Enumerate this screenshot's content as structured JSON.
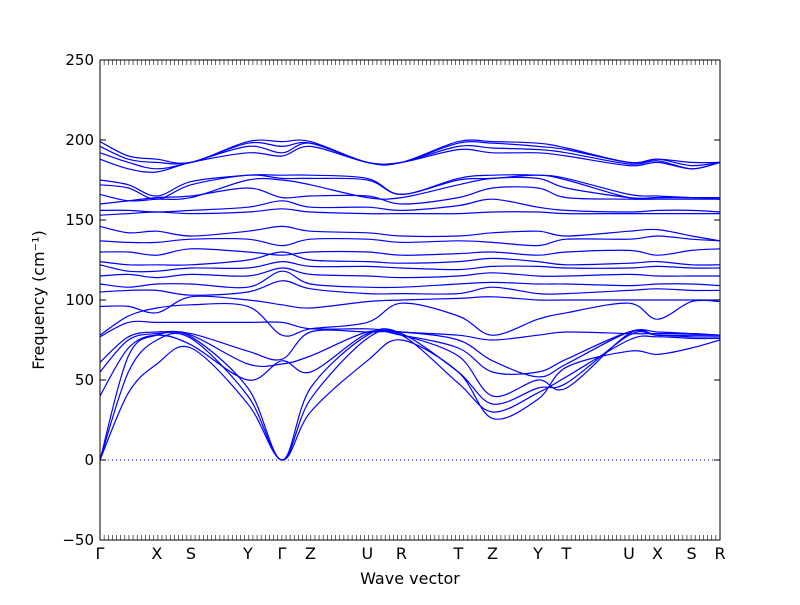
{
  "chart_data": {
    "type": "line",
    "xlabel": "Wave vector",
    "ylabel": "Frequency (cm⁻¹)",
    "ylim": [
      -50,
      250
    ],
    "yticks": [
      -50,
      0,
      50,
      100,
      150,
      200,
      250
    ],
    "grid": false,
    "zero_line": 0,
    "line_color": "#0000ff",
    "high_symmetry_points": [
      {
        "label": "Γ",
        "x": 0.0
      },
      {
        "label": "X",
        "x": 0.5
      },
      {
        "label": "S",
        "x": 0.8
      },
      {
        "label": "Y",
        "x": 1.3
      },
      {
        "label": "Γ",
        "x": 1.6
      },
      {
        "label": "Z",
        "x": 1.85
      },
      {
        "label": "U",
        "x": 2.35
      },
      {
        "label": "R",
        "x": 2.65
      },
      {
        "label": "T",
        "x": 3.15
      },
      {
        "label": "Z",
        "x": 3.45
      },
      {
        "label": "Y",
        "x": 3.85
      },
      {
        "label": "T",
        "x": 4.1
      },
      {
        "label": "U",
        "x": 4.65
      },
      {
        "label": "X",
        "x": 4.9
      },
      {
        "label": "S",
        "x": 5.2
      },
      {
        "label": "R",
        "x": 5.45
      }
    ],
    "series": [
      {
        "x": [
          0.0,
          0.25,
          0.5,
          0.8,
          1.3,
          1.6,
          1.85,
          2.35,
          2.65,
          3.15,
          3.45,
          3.85,
          4.1,
          4.65,
          4.9,
          5.2,
          5.45
        ],
        "values": [
          0,
          42,
          60,
          70,
          35,
          0,
          30,
          62,
          75,
          55,
          26,
          38,
          58,
          68,
          66,
          70,
          75
        ]
      },
      {
        "x": [
          0.0,
          0.25,
          0.5,
          0.8,
          1.3,
          1.6,
          1.85,
          2.35,
          2.65,
          3.15,
          3.45,
          3.85,
          4.1,
          4.65,
          4.9,
          5.2,
          5.45
        ],
        "values": [
          0,
          55,
          75,
          76,
          40,
          0,
          38,
          76,
          78,
          48,
          30,
          42,
          52,
          75,
          77,
          76,
          76
        ]
      },
      {
        "x": [
          0.0,
          0.25,
          0.5,
          0.8,
          1.3,
          1.6,
          1.85,
          2.35,
          2.65,
          3.15,
          3.45,
          3.85,
          4.1,
          4.65,
          4.9,
          5.2,
          5.45
        ],
        "values": [
          0,
          65,
          78,
          77,
          45,
          0,
          45,
          78,
          79,
          55,
          35,
          45,
          48,
          78,
          78,
          77,
          77
        ]
      },
      {
        "x": [
          0.0,
          0.25,
          0.5,
          0.8,
          1.3,
          1.6,
          1.85,
          2.35,
          2.65,
          3.15,
          3.45,
          3.85,
          4.1,
          4.65,
          4.9,
          5.2,
          5.45
        ],
        "values": [
          40,
          70,
          78,
          72,
          50,
          62,
          55,
          79,
          78,
          65,
          40,
          50,
          45,
          79,
          78,
          78,
          78
        ]
      },
      {
        "x": [
          0.0,
          0.25,
          0.5,
          0.8,
          1.3,
          1.6,
          1.85,
          2.35,
          2.65,
          3.15,
          3.45,
          3.85,
          4.1,
          4.65,
          4.9,
          5.2,
          5.45
        ],
        "values": [
          55,
          75,
          79,
          78,
          60,
          60,
          65,
          80,
          78,
          70,
          55,
          55,
          63,
          80,
          78,
          78,
          78
        ]
      },
      {
        "x": [
          0.0,
          0.25,
          0.5,
          0.8,
          1.3,
          1.6,
          1.85,
          2.35,
          2.65,
          3.15,
          3.45,
          3.85,
          4.1,
          4.65,
          4.9,
          5.2,
          5.45
        ],
        "values": [
          61,
          77,
          80,
          79,
          68,
          63,
          80,
          80,
          80,
          75,
          62,
          52,
          60,
          80,
          80,
          79,
          78
        ]
      },
      {
        "x": [
          0.0,
          0.25,
          0.5,
          0.8,
          1.3,
          1.6,
          1.85,
          2.35,
          2.65,
          3.15,
          3.45,
          3.85,
          4.1,
          4.65,
          4.9,
          5.2,
          5.45
        ],
        "values": [
          77,
          86,
          86,
          86,
          86,
          86,
          82,
          82,
          80,
          78,
          75,
          78,
          80,
          79,
          79,
          79,
          78
        ]
      },
      {
        "x": [
          0.0,
          0.25,
          0.5,
          0.8,
          1.3,
          1.6,
          1.85,
          2.35,
          2.65,
          3.15,
          3.45,
          3.85,
          4.1,
          4.65,
          4.9,
          5.2,
          5.45
        ],
        "values": [
          78,
          90,
          95,
          97,
          96,
          78,
          82,
          86,
          98,
          90,
          78,
          88,
          92,
          98,
          88,
          99,
          99
        ]
      },
      {
        "x": [
          0.0,
          0.25,
          0.5,
          0.8,
          1.3,
          1.6,
          1.85,
          2.35,
          2.65,
          3.15,
          3.45,
          3.85,
          4.1,
          4.65,
          4.9,
          5.2,
          5.45
        ],
        "values": [
          96,
          96,
          92,
          102,
          100,
          97,
          95,
          99,
          100,
          101,
          102,
          100,
          100,
          100,
          100,
          100,
          100
        ]
      },
      {
        "x": [
          0.0,
          0.25,
          0.5,
          0.8,
          1.3,
          1.6,
          1.85,
          2.35,
          2.65,
          3.15,
          3.45,
          3.85,
          4.1,
          4.65,
          4.9,
          5.2,
          5.45
        ],
        "values": [
          105,
          106,
          106,
          103,
          105,
          112,
          107,
          104,
          104,
          104,
          108,
          104,
          104,
          106,
          107,
          106,
          106
        ]
      },
      {
        "x": [
          0.0,
          0.25,
          0.5,
          0.8,
          1.3,
          1.6,
          1.85,
          2.35,
          2.65,
          3.15,
          3.45,
          3.85,
          4.1,
          4.65,
          4.9,
          5.2,
          5.45
        ],
        "values": [
          110,
          108,
          110,
          110,
          108,
          118,
          110,
          108,
          108,
          110,
          111,
          110,
          110,
          109,
          110,
          110,
          109
        ]
      },
      {
        "x": [
          0.0,
          0.25,
          0.5,
          0.8,
          1.3,
          1.6,
          1.85,
          2.35,
          2.65,
          3.15,
          3.45,
          3.85,
          4.1,
          4.65,
          4.9,
          5.2,
          5.45
        ],
        "values": [
          115,
          116,
          114,
          116,
          115,
          120,
          116,
          115,
          114,
          115,
          117,
          115,
          115,
          116,
          115,
          115,
          115
        ]
      },
      {
        "x": [
          0.0,
          0.25,
          0.5,
          0.8,
          1.3,
          1.6,
          1.85,
          2.35,
          2.65,
          3.15,
          3.45,
          3.85,
          4.1,
          4.65,
          4.9,
          5.2,
          5.45
        ],
        "values": [
          122,
          118,
          118,
          120,
          120,
          124,
          121,
          121,
          120,
          119,
          121,
          121,
          120,
          120,
          121,
          120,
          120
        ]
      },
      {
        "x": [
          0.0,
          0.25,
          0.5,
          0.8,
          1.3,
          1.6,
          1.85,
          2.35,
          2.65,
          3.15,
          3.45,
          3.85,
          4.1,
          4.65,
          4.9,
          5.2,
          5.45
        ],
        "values": [
          124,
          122,
          122,
          122,
          125,
          130,
          125,
          124,
          123,
          124,
          126,
          124,
          122,
          123,
          124,
          122,
          122
        ]
      },
      {
        "x": [
          0.0,
          0.25,
          0.5,
          0.8,
          1.3,
          1.6,
          1.85,
          2.35,
          2.65,
          3.15,
          3.45,
          3.85,
          4.1,
          4.65,
          4.9,
          5.2,
          5.45
        ],
        "values": [
          130,
          130,
          128,
          132,
          130,
          128,
          130,
          130,
          128,
          129,
          130,
          128,
          130,
          131,
          128,
          131,
          132
        ]
      },
      {
        "x": [
          0.0,
          0.25,
          0.5,
          0.8,
          1.3,
          1.6,
          1.85,
          2.35,
          2.65,
          3.15,
          3.45,
          3.85,
          4.1,
          4.65,
          4.9,
          5.2,
          5.45
        ],
        "values": [
          137,
          136,
          136,
          138,
          138,
          134,
          138,
          138,
          136,
          137,
          136,
          134,
          138,
          138,
          140,
          138,
          137
        ]
      },
      {
        "x": [
          0.0,
          0.25,
          0.5,
          0.8,
          1.3,
          1.6,
          1.85,
          2.35,
          2.65,
          3.15,
          3.45,
          3.85,
          4.1,
          4.65,
          4.9,
          5.2,
          5.45
        ],
        "values": [
          146,
          142,
          143,
          140,
          143,
          146,
          143,
          142,
          140,
          140,
          142,
          143,
          140,
          143,
          144,
          140,
          137
        ]
      },
      {
        "x": [
          0.0,
          0.25,
          0.5,
          0.8,
          1.3,
          1.6,
          1.85,
          2.35,
          2.65,
          3.15,
          3.45,
          3.85,
          4.1,
          4.65,
          4.9,
          5.2,
          5.45
        ],
        "values": [
          153,
          154,
          155,
          154,
          155,
          157,
          155,
          154,
          154,
          154,
          155,
          155,
          154,
          154,
          154,
          154,
          154
        ]
      },
      {
        "x": [
          0.0,
          0.25,
          0.5,
          0.8,
          1.3,
          1.6,
          1.85,
          2.35,
          2.65,
          3.15,
          3.45,
          3.85,
          4.1,
          4.65,
          4.9,
          5.2,
          5.45
        ],
        "values": [
          156,
          156,
          155,
          156,
          158,
          162,
          158,
          158,
          156,
          159,
          163,
          158,
          156,
          155,
          156,
          156,
          155
        ]
      },
      {
        "x": [
          0.0,
          0.25,
          0.5,
          0.8,
          1.3,
          1.6,
          1.85,
          2.35,
          2.65,
          3.15,
          3.45,
          3.85,
          4.1,
          4.65,
          4.9,
          5.2,
          5.45
        ],
        "values": [
          160,
          162,
          164,
          165,
          170,
          164,
          165,
          165,
          160,
          164,
          170,
          170,
          164,
          163,
          163,
          163,
          163
        ]
      },
      {
        "x": [
          0.0,
          0.25,
          0.5,
          0.8,
          1.3,
          1.6,
          1.85,
          2.35,
          2.65,
          3.15,
          3.45,
          3.85,
          4.1,
          4.65,
          4.9,
          5.2,
          5.45
        ],
        "values": [
          166,
          162,
          163,
          164,
          175,
          175,
          172,
          164,
          164,
          172,
          176,
          176,
          170,
          164,
          164,
          164,
          163
        ]
      },
      {
        "x": [
          0.0,
          0.25,
          0.5,
          0.8,
          1.3,
          1.6,
          1.85,
          2.35,
          2.65,
          3.15,
          3.45,
          3.85,
          4.1,
          4.65,
          4.9,
          5.2,
          5.45
        ],
        "values": [
          172,
          170,
          163,
          172,
          178,
          176,
          176,
          175,
          166,
          175,
          176,
          178,
          175,
          164,
          164,
          164,
          164
        ]
      },
      {
        "x": [
          0.0,
          0.25,
          0.5,
          0.8,
          1.3,
          1.6,
          1.85,
          2.35,
          2.65,
          3.15,
          3.45,
          3.85,
          4.1,
          4.65,
          4.9,
          5.2,
          5.45
        ],
        "values": [
          175,
          172,
          165,
          174,
          178,
          178,
          178,
          176,
          166,
          176,
          178,
          178,
          176,
          166,
          165,
          164,
          164
        ]
      },
      {
        "x": [
          0.0,
          0.25,
          0.5,
          0.8,
          1.3,
          1.6,
          1.85,
          2.35,
          2.65,
          3.15,
          3.45,
          3.85,
          4.1,
          4.65,
          4.9,
          5.2,
          5.45
        ],
        "values": [
          188,
          182,
          180,
          186,
          192,
          190,
          196,
          186,
          186,
          194,
          192,
          192,
          190,
          184,
          186,
          182,
          186
        ]
      },
      {
        "x": [
          0.0,
          0.25,
          0.5,
          0.8,
          1.3,
          1.6,
          1.85,
          2.35,
          2.65,
          3.15,
          3.45,
          3.85,
          4.1,
          4.65,
          4.9,
          5.2,
          5.45
        ],
        "values": [
          192,
          186,
          182,
          186,
          196,
          192,
          198,
          186,
          186,
          196,
          195,
          194,
          192,
          185,
          187,
          182,
          186
        ]
      },
      {
        "x": [
          0.0,
          0.25,
          0.5,
          0.8,
          1.3,
          1.6,
          1.85,
          2.35,
          2.65,
          3.15,
          3.45,
          3.85,
          4.1,
          4.65,
          4.9,
          5.2,
          5.45
        ],
        "values": [
          196,
          188,
          186,
          186,
          198,
          196,
          198,
          186,
          186,
          198,
          198,
          196,
          194,
          186,
          188,
          184,
          186
        ]
      },
      {
        "x": [
          0.0,
          0.25,
          0.5,
          0.8,
          1.3,
          1.6,
          1.85,
          2.35,
          2.65,
          3.15,
          3.45,
          3.85,
          4.1,
          4.65,
          4.9,
          5.2,
          5.45
        ],
        "values": [
          199,
          190,
          188,
          186,
          199,
          199,
          199,
          186,
          186,
          199,
          199,
          198,
          195,
          186,
          188,
          186,
          186
        ]
      }
    ]
  }
}
